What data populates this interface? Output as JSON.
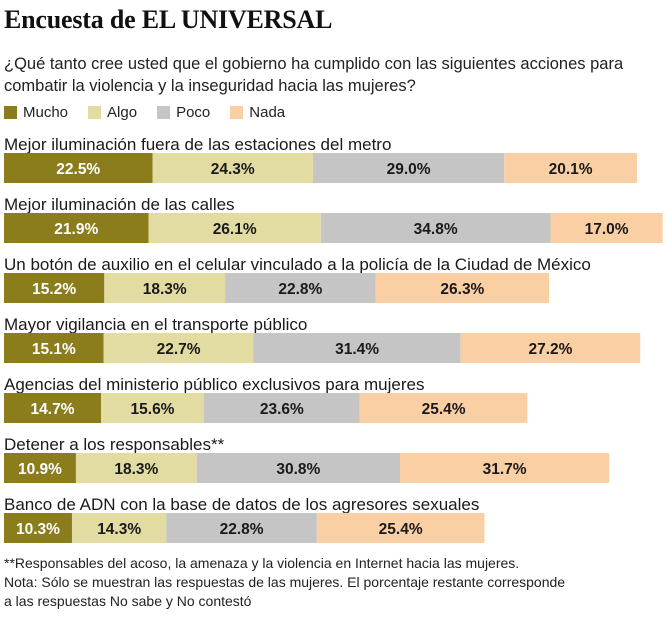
{
  "title": "Encuesta de EL UNIVERSAL",
  "question": "¿Qué tanto cree usted que el gobierno ha cumplido con las siguientes acciones para combatir la violencia y la inseguridad hacia las mujeres?",
  "legend": [
    {
      "label": "Mucho",
      "color": "#8c7d1c"
    },
    {
      "label": "Algo",
      "color": "#e3dca2"
    },
    {
      "label": "Poco",
      "color": "#c5c5c5"
    },
    {
      "label": "Nada",
      "color": "#fbcfa4"
    }
  ],
  "chart_data": {
    "type": "bar",
    "orientation": "horizontal-stacked",
    "unit": "%",
    "series": [
      {
        "name": "Mucho",
        "color": "#8c7d1c",
        "text_color": "#ffffff",
        "values": [
          22.5,
          21.9,
          15.2,
          15.1,
          14.7,
          10.9,
          10.3
        ]
      },
      {
        "name": "Algo",
        "color": "#e3dca2",
        "text_color": "#1a1a1a",
        "values": [
          24.3,
          26.1,
          18.3,
          22.7,
          15.6,
          18.3,
          14.3
        ]
      },
      {
        "name": "Poco",
        "color": "#c5c5c5",
        "text_color": "#1a1a1a",
        "values": [
          29.0,
          34.8,
          22.8,
          31.4,
          23.6,
          30.8,
          22.8
        ]
      },
      {
        "name": "Nada",
        "color": "#fbcfa4",
        "text_color": "#1a1a1a",
        "values": [
          20.1,
          17.0,
          26.3,
          27.2,
          25.4,
          31.7,
          25.4
        ]
      }
    ],
    "categories": [
      "Mejor iluminación fuera de las estaciones del metro",
      "Mejor iluminación de las calles",
      "Un botón de auxilio en el celular vinculado a la policía de la Ciudad de México",
      "Mayor vigilancia en el transporte público",
      "Agencias del ministerio público exclusivos para mujeres",
      "Detener a los responsables**",
      "Banco de ADN con la base de datos de los agresores sexuales"
    ],
    "value_labels": [
      [
        "22.5%",
        "24.3%",
        "29.0%",
        "20.1%"
      ],
      [
        "21.9%",
        "26.1%",
        "34.8%",
        "17.0%"
      ],
      [
        "15.2%",
        "18.3%",
        "22.8%",
        "26.3%"
      ],
      [
        "15.1%",
        "22.7%",
        "31.4%",
        "27.2%"
      ],
      [
        "14.7%",
        "15.6%",
        "23.6%",
        "25.4%"
      ],
      [
        "10.9%",
        "18.3%",
        "30.8%",
        "31.7%"
      ],
      [
        "10.3%",
        "14.3%",
        "22.8%",
        "25.4%"
      ]
    ]
  },
  "footnotes": {
    "responsables": "**Responsables del acoso, la amenaza y la violencia en Internet hacia las mujeres.",
    "nota_line1": "Nota: Sólo se muestran las respuestas de las mujeres. El porcentaje restante corresponde",
    "nota_line2": "a las respuestas No sabe y No contestó"
  }
}
